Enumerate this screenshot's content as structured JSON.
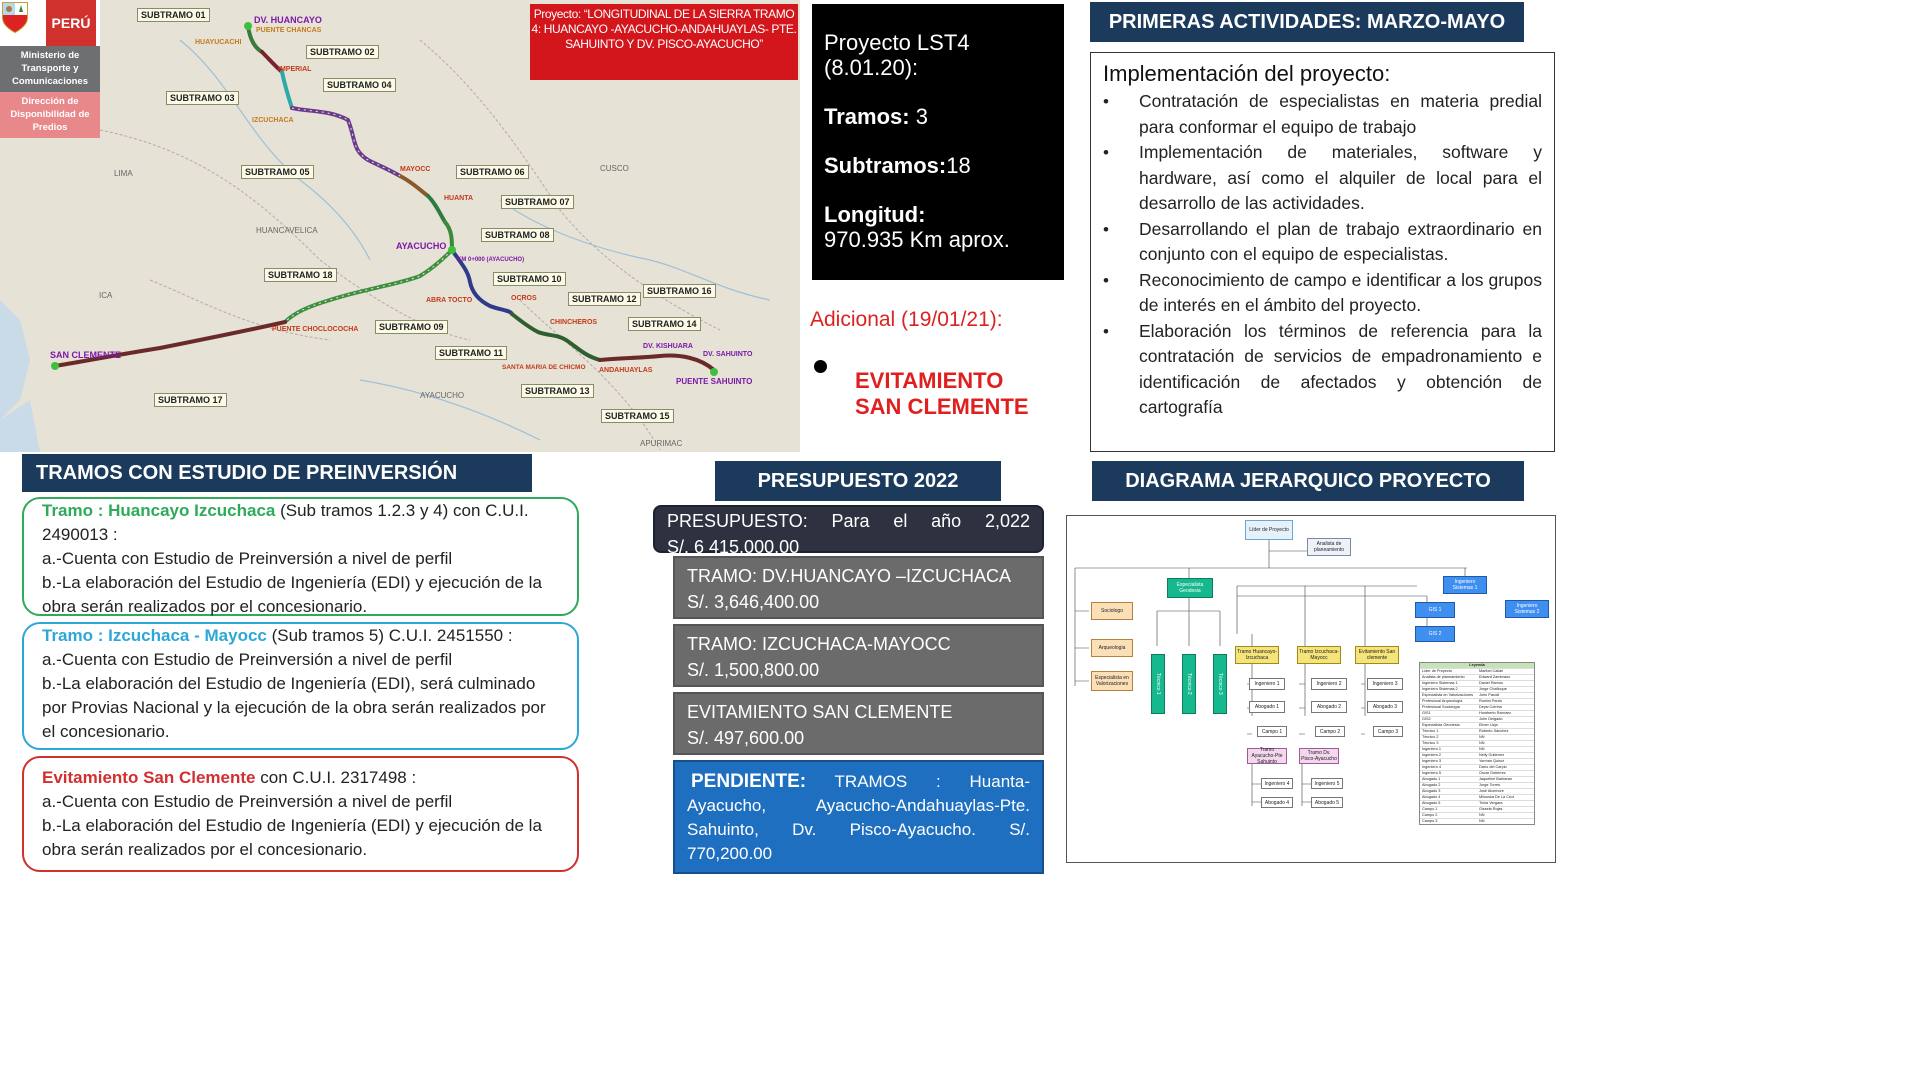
{
  "header": {
    "country": "PERÚ",
    "ministry": "Ministerio de Transporte y Comunicaciones",
    "directorate": "Dirección de Disponibilidad de Predios"
  },
  "map": {
    "project_title": "Proyecto: “LONGITUDINAL DE LA SIERRA TRAMO 4: HUANCAYO -AYACUCHO-ANDAHUAYLAS- PTE. SAHUINTO Y DV. PISCO-AYACUCHO”",
    "subtramos": [
      "SUBTRAMO 01",
      "SUBTRAMO 02",
      "SUBTRAMO 03",
      "SUBTRAMO 04",
      "SUBTRAMO 05",
      "SUBTRAMO 06",
      "SUBTRAMO 07",
      "SUBTRAMO 08",
      "SUBTRAMO 18",
      "SUBTRAMO 10",
      "SUBTRAMO 16",
      "SUBTRAMO 12",
      "SUBTRAMO 09",
      "SUBTRAMO 14",
      "SUBTRAMO 11",
      "SUBTRAMO 13",
      "SUBTRAMO 17",
      "SUBTRAMO 15"
    ],
    "cities": [
      "DV. HUANCAYO",
      "PUENTE CHANCAS",
      "HUAYUCACHI",
      "IMPERIAL",
      "IZCUCHACA",
      "MAYOCC",
      "HUANTA",
      "AYACUCHO",
      "KM 0+000 (AYACUCHO)",
      "ABRA TOCTO",
      "OCROS",
      "CHINCHEROS",
      "DV. KISHUARA",
      "DV. SAHUINTO",
      "ANDAHUAYLAS",
      "PUENTE SAHUINTO",
      "SANTA MARIA DE CHICMO",
      "PUENTE CHOCLOCOCHA",
      "SAN CLEMENTE"
    ],
    "regions": [
      "LIMA",
      "CUSCO",
      "HUANCAVELICA",
      "ICA",
      "AYACUCHO",
      "APURIMAC"
    ]
  },
  "summary": {
    "line1": "Proyecto LST4",
    "line2": "(8.01.20):",
    "tramos_label": "Tramos:",
    "tramos_value": " 3",
    "subtramos_label": "Subtramos:",
    "subtramos_value": "18",
    "longitud_label": "Longitud:",
    "longitud_value": "970.935  Km aprox.",
    "adicional": "Adicional (19/01/21):",
    "evit_line1": "EVITAMIENTO",
    "evit_line2": "SAN CLEMENTE"
  },
  "actividades": {
    "header": "PRIMERAS ACTIVIDADES:  MARZO-MAYO",
    "title": "Implementación del proyecto:",
    "items": [
      "Contratación de especialistas en materia predial para conformar el equipo de trabajo",
      "Implementación de materiales, software y hardware, así como el alquiler de local para el desarrollo de las actividades.",
      "Desarrollando el plan de trabajo extraordinario en conjunto con el equipo de especialistas.",
      " Reconocimiento de campo e  identificar a los grupos de interés en el ámbito del proyecto.",
      "Elaboración los términos de referencia para la contratación de servicios de empadronamiento e identificación de afectados y  obtención de cartografía"
    ]
  },
  "tramos": {
    "header": "TRAMOS CON ESTUDIO DE PREINVERSIÓN",
    "items": [
      {
        "name": "Tramo : Huancayo Izcuchaca",
        "rest": "  (Sub tramos 1.2.3 y 4) con C.U.I. 2490013 :",
        "a": "a.-Cuenta con Estudio de Preinversión a nivel de perfil",
        "b": "b.-La elaboración del Estudio de Ingeniería (EDI) y ejecución de la obra serán realizados por el concesionario.",
        "color": "#2eaa5a"
      },
      {
        "name": "Tramo : Izcuchaca  - Mayocc",
        "rest": " (Sub tramos 5) C.U.I. 2451550 :",
        "a": "a.-Cuenta con Estudio de Preinversión a nivel de perfil",
        "b": "b.-La elaboración del Estudio de Ingeniería  (EDI), será culminado por Provias Nacional y la ejecución de la obra serán realizados por el concesionario.",
        "color": "#2da7d8"
      },
      {
        "name": "Evitamiento San Clemente",
        "rest": "  con C.U.I. 2317498 :",
        "a": "a.-Cuenta con Estudio de Preinversión a nivel de perfil",
        "b": "b.-La elaboración del Estudio de Ingeniería (EDI) y ejecución de la obra serán realizados por el concesionario.",
        "color": "#d22f2f"
      }
    ]
  },
  "presupuesto": {
    "header": "PRESUPUESTO 2022",
    "total_line1": "PRESUPUESTO:   Para   el   año   2,022",
    "total_line2": "S/. 6 415,000.00",
    "items": [
      {
        "label": "TRAMO: DV.HUANCAYO –IZCUCHACA",
        "amount": "S/. 3,646,400.00"
      },
      {
        "label": "TRAMO: IZCUCHACA-MAYOCC",
        "amount": "S/. 1,500,800.00"
      },
      {
        "label": "EVITAMIENTO SAN CLEMENTE",
        "amount": "S/. 497,600.00"
      }
    ],
    "pendiente_label": "PENDIENTE:",
    "pendiente_text": "TRAMOS : Huanta-Ayacucho, Ayacucho-Andahuaylas-Pte. Sahuinto, Dv. Pisco-Ayacucho. S/. 770,200.00"
  },
  "diagrama": {
    "header": "DIAGRAMA JERARQUICO PROYECTO",
    "nodes": {
      "lider": "Líder de Proyecto",
      "analista": "Analista de planeamiento",
      "especialista": "Especialista Geodesia",
      "ingsis1": "Ingeniero Sistemas 1",
      "ingsis2": "Ingeniero Sistemas 2",
      "gis1": "GIS 1",
      "gis2": "GIS 2",
      "sociologo": "Sociologo",
      "arqueologia": "Arqueologia",
      "valorizaciones": "Especialista en Valorizaciones",
      "tecnico1": "Técnico 1",
      "tecnico2": "Técnico 2",
      "tecnico3": "Técnico 3",
      "tramo1": "Tramo Huancayo-Izcuchaca",
      "tramo2": "Tramo Izcuchaca-Mayocc",
      "tramo3": "Evitamiento San clemente",
      "ing1": "Ingeniero 1",
      "ing2": "Ingeniero 2",
      "ing3": "Ingeniero 3",
      "abog1": "Abogado 1",
      "abog2": "Abogado 2",
      "abog3": "Abogado 3",
      "campo1": "Campo 1",
      "campo2": "Campo 2",
      "campo3": "Campo 3",
      "tramo4": "Tramo Ayacucho-Pte Sahuinto",
      "tramo5": "Tramo Dv. Pisco-Ayacucho",
      "ing4": "Ingeniero 4",
      "abog4": "Abogado 4",
      "ing5": "Ingeniero 5",
      "abog5": "Abogado 5"
    },
    "legend_title": "Leyenda",
    "legend": [
      [
        "Líder de Proyecto",
        "Maribel Callari"
      ],
      [
        "Analista de planeamiento",
        "Edward Zambrano"
      ],
      [
        "Ingeniero Sistemas 1",
        "Daniel Ramos"
      ],
      [
        "Ingeniero Sistemas 2",
        "Jorge Chafloque"
      ],
      [
        "Especialista en Valorizaciones",
        "John Parodi"
      ],
      [
        "Profesional Arqueología",
        "Romini Pardo"
      ],
      [
        "Profesional Sociología",
        "Deysi Cotrina"
      ],
      [
        "GIS1",
        "Humberto Ramírez"
      ],
      [
        "GIS2",
        "John Delgado"
      ],
      [
        "Especialista Geodesia",
        "Elmer Uzja"
      ],
      [
        "Técnico 1",
        "Roberto Sánchez"
      ],
      [
        "Técnico 2",
        "NN"
      ],
      [
        "Técnico 3",
        "NN"
      ],
      [
        "Ingeniero 1",
        "NN"
      ],
      [
        "Ingeniero 2",
        "Nelly Gutierrez"
      ],
      [
        "Ingeniero 3",
        "Yorman Quiroz"
      ],
      [
        "Ingeniero 4",
        "Darío del Carpio"
      ],
      [
        "Ingeniero 5",
        "Oscar Gutierrez"
      ],
      [
        "Abogado 1",
        "Jaqueline Barbaran"
      ],
      [
        "Abogado 2",
        "Jorge Torres"
      ],
      [
        "Abogado 3",
        "José Alcemore"
      ],
      [
        "Abogado 4",
        "Milouska De La Cruz"
      ],
      [
        "Abogado 5",
        "Trixia Vergara"
      ],
      [
        "Campo 1",
        "Gissela Rojas"
      ],
      [
        "Campo 2",
        "NN"
      ],
      [
        "Campo 3",
        "NN"
      ]
    ]
  },
  "colors": {
    "header_navy": "#1b3a5c",
    "red": "#d2161c",
    "green_border": "#2eaa5a",
    "blue_border": "#2da7d8",
    "red_border": "#d22f2f",
    "budget_gray": "#6b6b6b",
    "budget_dark": "#2e3240",
    "pendiente_blue": "#1f6fc1"
  }
}
